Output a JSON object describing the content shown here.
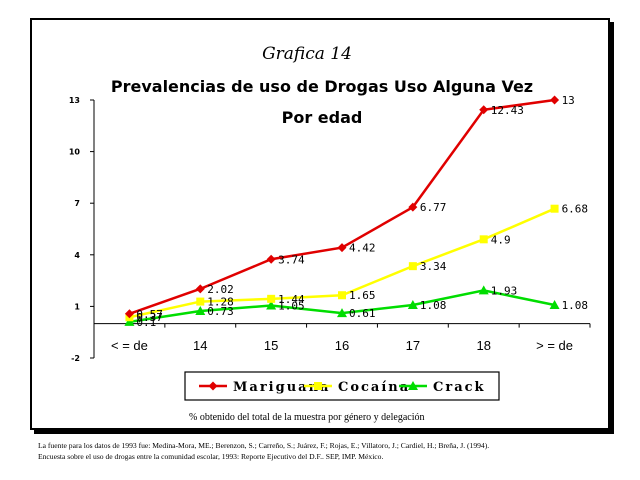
{
  "chart_data": {
    "type": "line",
    "title": "Grafica 14",
    "subtitle_1": "Prevalencias de uso de Drogas Uso Alguna Vez",
    "subtitle_2": "Por edad",
    "categories": [
      "< = de",
      "14",
      "15",
      "16",
      "17",
      "18",
      "> = de"
    ],
    "ylim": [
      -2,
      13
    ],
    "yticks": [
      -2,
      1,
      4,
      7,
      10,
      13
    ],
    "series": [
      {
        "name": "Mariguana",
        "color": "#e00000",
        "marker": "diamond",
        "values": [
          0.57,
          2.02,
          3.74,
          4.42,
          6.77,
          12.43,
          13
        ],
        "labels": [
          "0.57",
          "2.02",
          "3.74",
          "4.42",
          "6.77",
          "12.43",
          "13"
        ]
      },
      {
        "name": "Cocaína",
        "color": "#ffff00",
        "marker": "square",
        "values": [
          0.37,
          1.28,
          1.44,
          1.65,
          3.34,
          4.9,
          6.68
        ],
        "labels": [
          "0.37",
          "1.28",
          "1.44",
          "1.65",
          "3.34",
          "4.9",
          "6.68"
        ]
      },
      {
        "name": "Crack",
        "color": "#00dd00",
        "marker": "triangle",
        "values": [
          0.1,
          0.73,
          1.05,
          0.61,
          1.08,
          1.93,
          1.08
        ],
        "labels": [
          "0.1",
          "0.73",
          "1.05",
          "0.61",
          "1.08",
          "1.93",
          "1.08"
        ]
      }
    ],
    "legend_position": "bottom",
    "grid": false
  },
  "note": "% obtenido del total de la muestra por género y delegación",
  "footer": {
    "line1": "La fuente para los datos de 1993 fue: Medina-Mora, ME.; Berenzon, S.; Carreño, S.; Juárez, F.; Rojas, E.; Villatoro, J.; Cardiel, H.; Breña, J. (1994).",
    "line2": "Encuesta sobre el uso de drogas entre la comunidad escolar, 1993: Reporte Ejecutivo del D.F.. SEP, IMP. México."
  }
}
